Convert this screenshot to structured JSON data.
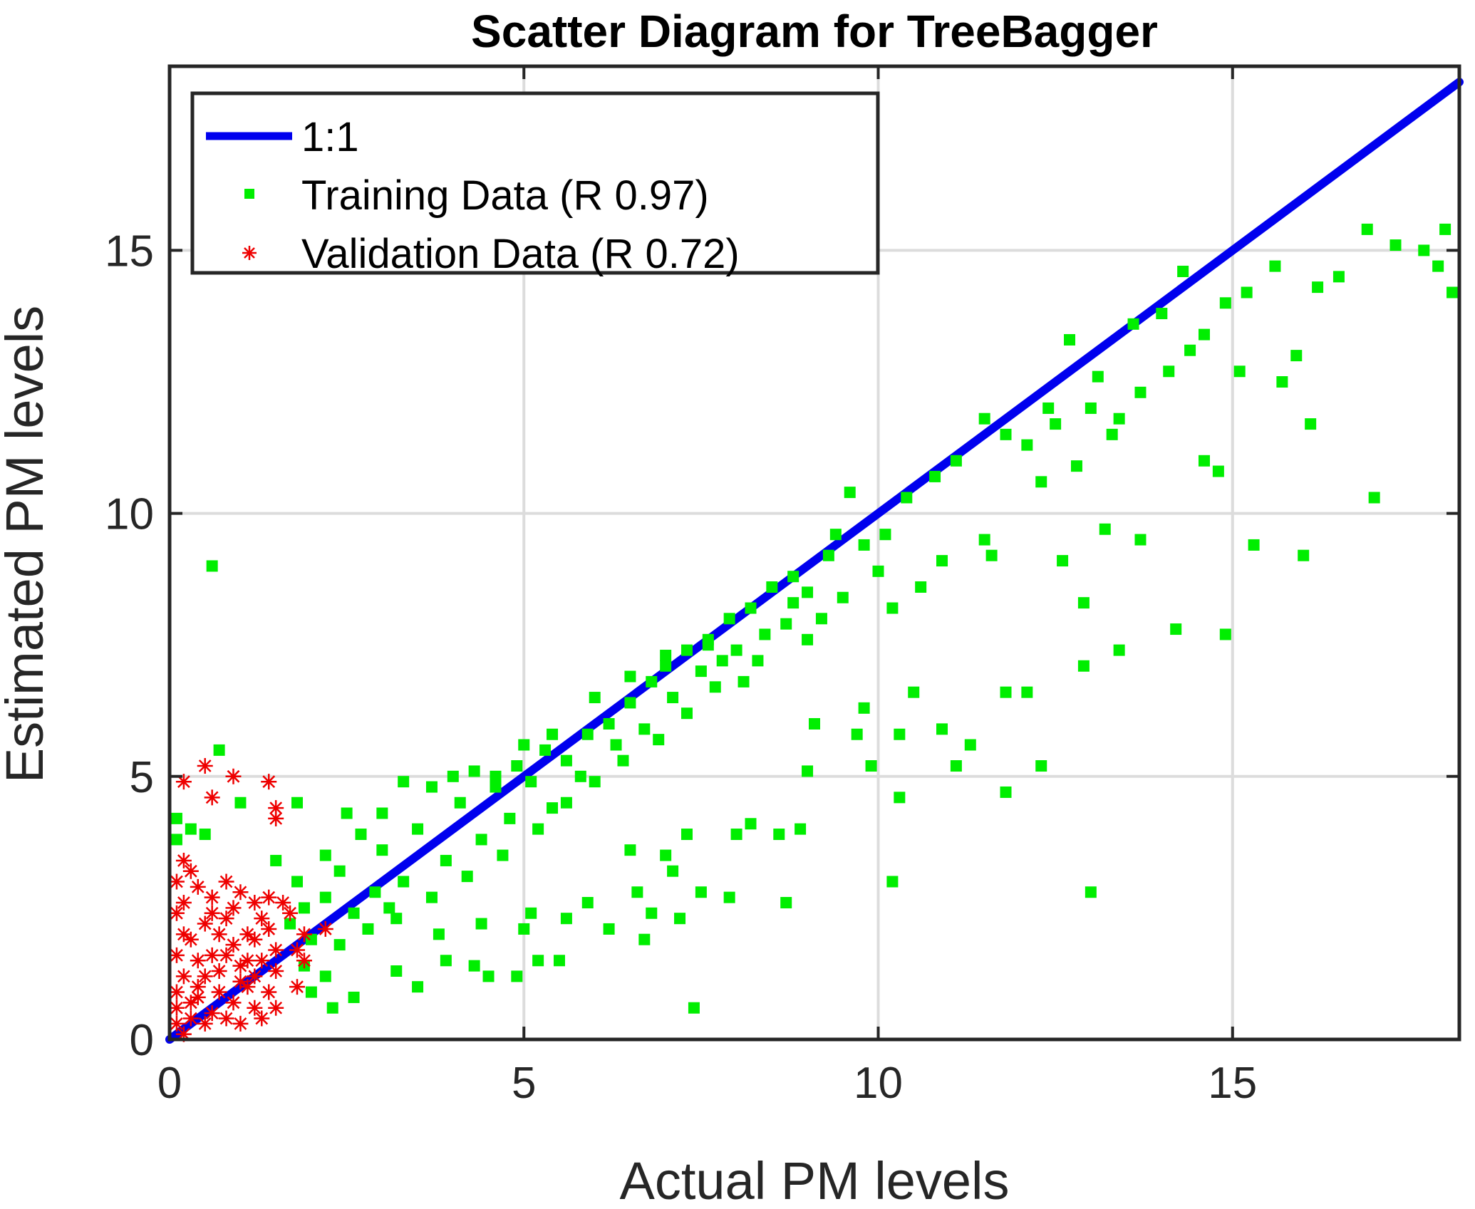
{
  "chart_data": {
    "type": "scatter",
    "title": "Scatter Diagram for TreeBagger",
    "xlabel": "Actual PM levels",
    "ylabel": "Estimated PM levels",
    "xlim": [
      0,
      18.2
    ],
    "ylim": [
      0,
      18.5
    ],
    "xticks": [
      0,
      5,
      10,
      15
    ],
    "yticks": [
      0,
      5,
      10,
      15
    ],
    "grid": true,
    "legend_position": "top-left",
    "colors": {
      "line": "#0000ee",
      "training": "#00ee00",
      "validation": "#ee0000",
      "axes": "#262626",
      "grid": "#dcdcdc"
    },
    "series": [
      {
        "name": "1:1",
        "kind": "line",
        "x": [
          0,
          18.2
        ],
        "y": [
          0,
          18.2
        ]
      },
      {
        "name": "Training Data (R 0.97)",
        "kind": "scatter",
        "marker": "square",
        "points": [
          [
            0.6,
            9.0
          ],
          [
            0.7,
            5.5
          ],
          [
            0.1,
            4.2
          ],
          [
            0.1,
            3.8
          ],
          [
            0.3,
            4.0
          ],
          [
            0.5,
            3.9
          ],
          [
            1.0,
            4.5
          ],
          [
            1.8,
            4.5
          ],
          [
            1.5,
            3.4
          ],
          [
            2.2,
            3.5
          ],
          [
            2.5,
            4.3
          ],
          [
            2.7,
            3.9
          ],
          [
            3.0,
            4.3
          ],
          [
            3.3,
            4.9
          ],
          [
            3.7,
            4.8
          ],
          [
            4.0,
            5.0
          ],
          [
            4.3,
            5.1
          ],
          [
            4.6,
            5.0
          ],
          [
            4.9,
            5.2
          ],
          [
            5.1,
            4.9
          ],
          [
            5.3,
            5.5
          ],
          [
            5.6,
            5.3
          ],
          [
            5.9,
            5.8
          ],
          [
            6.2,
            6.0
          ],
          [
            6.5,
            6.4
          ],
          [
            6.8,
            6.8
          ],
          [
            7.0,
            7.3
          ],
          [
            7.3,
            7.4
          ],
          [
            7.6,
            7.5
          ],
          [
            7.9,
            8.0
          ],
          [
            8.2,
            8.2
          ],
          [
            8.5,
            8.6
          ],
          [
            8.8,
            8.3
          ],
          [
            9.0,
            8.5
          ],
          [
            9.3,
            9.2
          ],
          [
            9.6,
            10.4
          ],
          [
            9.8,
            9.4
          ],
          [
            10.1,
            9.6
          ],
          [
            10.4,
            10.3
          ],
          [
            10.8,
            10.7
          ],
          [
            11.1,
            11.0
          ],
          [
            11.5,
            11.8
          ],
          [
            11.8,
            11.5
          ],
          [
            12.1,
            11.3
          ],
          [
            12.4,
            12.0
          ],
          [
            12.7,
            13.3
          ],
          [
            13.0,
            12.0
          ],
          [
            13.3,
            11.5
          ],
          [
            13.6,
            13.6
          ],
          [
            14.0,
            13.8
          ],
          [
            14.3,
            14.6
          ],
          [
            14.6,
            13.4
          ],
          [
            14.9,
            14.0
          ],
          [
            15.2,
            14.2
          ],
          [
            15.6,
            14.7
          ],
          [
            15.9,
            13.0
          ],
          [
            16.2,
            14.3
          ],
          [
            16.5,
            14.5
          ],
          [
            16.9,
            15.4
          ],
          [
            17.3,
            15.1
          ],
          [
            17.7,
            15.0
          ],
          [
            18.0,
            15.4
          ],
          [
            18.1,
            14.2
          ],
          [
            17.9,
            14.7
          ],
          [
            16.1,
            11.7
          ],
          [
            15.7,
            12.5
          ],
          [
            15.1,
            12.7
          ],
          [
            14.8,
            10.8
          ],
          [
            14.6,
            11.0
          ],
          [
            17.0,
            10.3
          ],
          [
            15.3,
            9.4
          ],
          [
            16.0,
            9.2
          ],
          [
            13.7,
            9.5
          ],
          [
            13.2,
            9.7
          ],
          [
            12.6,
            9.1
          ],
          [
            12.9,
            8.3
          ],
          [
            11.5,
            9.5
          ],
          [
            10.9,
            9.1
          ],
          [
            10.0,
            8.9
          ],
          [
            9.5,
            8.4
          ],
          [
            14.2,
            7.8
          ],
          [
            14.9,
            7.7
          ],
          [
            13.4,
            7.4
          ],
          [
            12.9,
            7.1
          ],
          [
            12.1,
            6.6
          ],
          [
            11.8,
            6.6
          ],
          [
            10.5,
            6.6
          ],
          [
            9.8,
            6.3
          ],
          [
            9.1,
            6.0
          ],
          [
            9.7,
            5.8
          ],
          [
            10.3,
            5.8
          ],
          [
            10.9,
            5.9
          ],
          [
            11.3,
            5.6
          ],
          [
            12.3,
            5.2
          ],
          [
            11.8,
            4.7
          ],
          [
            11.1,
            5.2
          ],
          [
            10.3,
            4.6
          ],
          [
            9.9,
            5.2
          ],
          [
            9.0,
            5.1
          ],
          [
            8.2,
            4.1
          ],
          [
            8.0,
            3.9
          ],
          [
            8.6,
            3.9
          ],
          [
            8.9,
            4.0
          ],
          [
            7.3,
            3.9
          ],
          [
            7.0,
            3.5
          ],
          [
            6.5,
            3.6
          ],
          [
            7.1,
            3.2
          ],
          [
            6.6,
            2.8
          ],
          [
            7.5,
            2.8
          ],
          [
            7.9,
            2.7
          ],
          [
            8.7,
            2.6
          ],
          [
            10.2,
            3.0
          ],
          [
            13.0,
            2.8
          ],
          [
            6.8,
            2.4
          ],
          [
            7.2,
            2.3
          ],
          [
            5.9,
            2.6
          ],
          [
            5.0,
            2.1
          ],
          [
            5.2,
            1.5
          ],
          [
            5.5,
            1.5
          ],
          [
            4.3,
            1.4
          ],
          [
            4.5,
            1.2
          ],
          [
            4.9,
            1.2
          ],
          [
            3.9,
            1.5
          ],
          [
            3.5,
            1.0
          ],
          [
            3.2,
            1.3
          ],
          [
            2.6,
            0.8
          ],
          [
            2.3,
            0.6
          ],
          [
            7.4,
            0.6
          ],
          [
            6.7,
            1.9
          ],
          [
            6.2,
            2.1
          ],
          [
            5.6,
            2.3
          ],
          [
            5.1,
            2.4
          ],
          [
            4.4,
            2.2
          ],
          [
            3.8,
            2.0
          ],
          [
            3.1,
            2.5
          ],
          [
            2.8,
            2.1
          ],
          [
            2.4,
            1.8
          ],
          [
            2.0,
            1.9
          ],
          [
            1.7,
            2.2
          ],
          [
            1.9,
            1.4
          ],
          [
            2.2,
            1.2
          ],
          [
            2.0,
            0.9
          ],
          [
            3.3,
            3.0
          ],
          [
            3.9,
            3.4
          ],
          [
            4.4,
            3.8
          ],
          [
            4.8,
            4.2
          ],
          [
            5.4,
            4.4
          ],
          [
            5.8,
            5.0
          ],
          [
            6.3,
            5.6
          ],
          [
            6.7,
            5.9
          ],
          [
            7.1,
            6.5
          ],
          [
            7.5,
            7.0
          ],
          [
            7.8,
            7.2
          ],
          [
            8.1,
            6.8
          ],
          [
            8.4,
            7.7
          ],
          [
            8.7,
            7.9
          ],
          [
            9.0,
            7.6
          ],
          [
            9.2,
            8.0
          ],
          [
            8.3,
            7.2
          ],
          [
            7.7,
            6.7
          ],
          [
            7.3,
            6.2
          ],
          [
            6.9,
            5.7
          ],
          [
            6.4,
            5.3
          ],
          [
            6.0,
            4.9
          ],
          [
            5.6,
            4.5
          ],
          [
            5.2,
            4.0
          ],
          [
            4.7,
            3.5
          ],
          [
            4.2,
            3.1
          ],
          [
            3.7,
            2.7
          ],
          [
            3.2,
            2.3
          ],
          [
            2.9,
            2.8
          ],
          [
            2.6,
            2.4
          ],
          [
            2.2,
            2.7
          ],
          [
            1.9,
            2.5
          ],
          [
            1.8,
            3.0
          ],
          [
            2.4,
            3.2
          ],
          [
            3.0,
            3.6
          ],
          [
            3.5,
            4.0
          ],
          [
            4.1,
            4.5
          ],
          [
            4.6,
            4.8
          ],
          [
            5.0,
            5.6
          ],
          [
            5.4,
            5.8
          ],
          [
            6.0,
            6.5
          ],
          [
            6.5,
            6.9
          ],
          [
            7.0,
            7.1
          ],
          [
            7.6,
            7.6
          ],
          [
            8.0,
            7.4
          ],
          [
            8.8,
            8.8
          ],
          [
            9.4,
            9.6
          ],
          [
            10.2,
            8.2
          ],
          [
            10.6,
            8.6
          ],
          [
            11.6,
            9.2
          ],
          [
            12.3,
            10.6
          ],
          [
            12.8,
            10.9
          ],
          [
            13.4,
            11.8
          ],
          [
            13.7,
            12.3
          ],
          [
            14.1,
            12.7
          ],
          [
            14.4,
            13.1
          ],
          [
            13.1,
            12.6
          ],
          [
            12.5,
            11.7
          ]
        ]
      },
      {
        "name": "Validation Data (R 0.72)",
        "kind": "scatter",
        "marker": "asterisk",
        "points": [
          [
            0.2,
            4.9
          ],
          [
            0.5,
            5.2
          ],
          [
            0.9,
            5.0
          ],
          [
            1.4,
            4.9
          ],
          [
            1.5,
            4.4
          ],
          [
            1.5,
            4.2
          ],
          [
            0.6,
            4.6
          ],
          [
            0.1,
            3.0
          ],
          [
            0.2,
            3.4
          ],
          [
            0.3,
            3.2
          ],
          [
            0.4,
            2.9
          ],
          [
            0.6,
            2.7
          ],
          [
            0.8,
            3.0
          ],
          [
            1.0,
            2.8
          ],
          [
            1.2,
            2.6
          ],
          [
            1.4,
            2.7
          ],
          [
            1.6,
            2.6
          ],
          [
            1.7,
            2.4
          ],
          [
            2.2,
            2.1
          ],
          [
            1.9,
            2.0
          ],
          [
            1.8,
            1.7
          ],
          [
            1.9,
            1.5
          ],
          [
            1.8,
            1.0
          ],
          [
            0.1,
            2.4
          ],
          [
            0.2,
            2.0
          ],
          [
            0.1,
            1.6
          ],
          [
            0.2,
            1.2
          ],
          [
            0.1,
            0.9
          ],
          [
            0.1,
            0.6
          ],
          [
            0.1,
            0.3
          ],
          [
            0.2,
            0.1
          ],
          [
            0.3,
            0.4
          ],
          [
            0.4,
            0.8
          ],
          [
            0.5,
            1.2
          ],
          [
            0.6,
            1.6
          ],
          [
            0.7,
            2.0
          ],
          [
            0.8,
            2.3
          ],
          [
            0.9,
            1.8
          ],
          [
            1.0,
            1.4
          ],
          [
            1.1,
            1.0
          ],
          [
            1.2,
            0.6
          ],
          [
            1.3,
            0.4
          ],
          [
            1.4,
            0.9
          ],
          [
            1.5,
            1.3
          ],
          [
            1.5,
            1.7
          ],
          [
            1.4,
            2.1
          ],
          [
            1.3,
            2.3
          ],
          [
            1.2,
            1.9
          ],
          [
            1.1,
            1.5
          ],
          [
            1.0,
            1.1
          ],
          [
            0.9,
            0.7
          ],
          [
            0.8,
            0.4
          ],
          [
            0.7,
            0.9
          ],
          [
            0.6,
            0.5
          ],
          [
            0.5,
            0.3
          ],
          [
            0.4,
            1.5
          ],
          [
            0.3,
            1.9
          ],
          [
            0.2,
            2.6
          ],
          [
            0.5,
            2.2
          ],
          [
            0.9,
            2.5
          ],
          [
            1.3,
            1.5
          ],
          [
            1.5,
            0.6
          ],
          [
            1.0,
            0.3
          ],
          [
            0.3,
            0.7
          ],
          [
            0.7,
            1.3
          ],
          [
            1.2,
            1.2
          ],
          [
            0.4,
            1.0
          ],
          [
            0.8,
            1.6
          ],
          [
            1.1,
            2.0
          ],
          [
            0.6,
            2.4
          ]
        ]
      }
    ]
  },
  "legend": {
    "items": [
      {
        "label": "1:1"
      },
      {
        "label": "Training Data (R 0.97)"
      },
      {
        "label": "Validation Data (R 0.72)"
      }
    ]
  }
}
